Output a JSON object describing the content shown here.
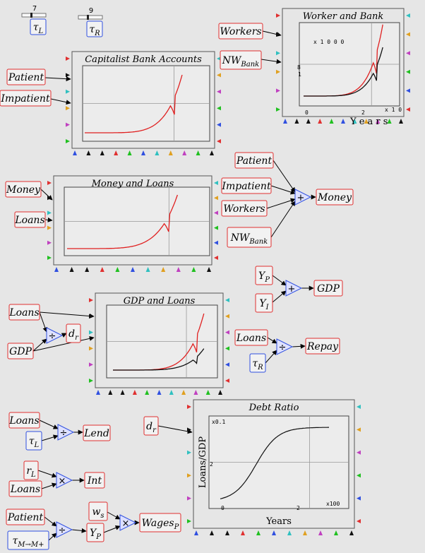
{
  "sliders": [
    {
      "value": "7",
      "label": "τ",
      "sub": "L"
    },
    {
      "value": "9",
      "label": "τ",
      "sub": "R"
    }
  ],
  "plots": {
    "worker_bank": {
      "title": "Worker and Bank",
      "scale_top": "x 1 0 0 0",
      "scale_left": "8",
      "scale_left2": "1",
      "xtick0": "0",
      "xtick2": "2",
      "xscale": "x 1 0",
      "xlabel": "Y e a r s",
      "inputs": [
        {
          "label": "Workers"
        },
        {
          "label": "NW",
          "sub": "Bank"
        }
      ]
    },
    "capitalist": {
      "title": "Capitalist Bank Accounts",
      "inputs": [
        {
          "label": "Patient"
        },
        {
          "label": "Impatient"
        }
      ]
    },
    "money_loans": {
      "title": "Money and Loans",
      "inputs": [
        {
          "label": "Money"
        },
        {
          "label": "Loans"
        }
      ]
    },
    "gdp_loans": {
      "title": "GDP and Loans"
    },
    "debt_ratio": {
      "title": "Debt Ratio",
      "ylabel": "Loans/GDP",
      "xlabel": "Years",
      "yscale": "x0.1",
      "y2": "2",
      "x0": "0",
      "x2": "2",
      "xscale": "x100",
      "input": {
        "label": "d",
        "sub": "r"
      }
    }
  },
  "blocks": {
    "money_sum": {
      "op": "+",
      "inputs": [
        {
          "label": "Patient"
        },
        {
          "label": "Impatient"
        },
        {
          "label": "Workers"
        },
        {
          "label": "NW",
          "sub": "Bank"
        }
      ],
      "output": "Money"
    },
    "gdp_sum": {
      "op": "+",
      "inputs": [
        {
          "label": "Y",
          "sub": "P"
        },
        {
          "label": "Y",
          "sub": "I"
        }
      ],
      "output": "GDP"
    },
    "dr_div": {
      "op": "÷",
      "inputs": [
        {
          "label": "Loans"
        },
        {
          "label": "GDP"
        }
      ],
      "output": {
        "label": "d",
        "sub": "r"
      }
    },
    "repay_div": {
      "op": "÷",
      "inputs": [
        {
          "label": "Loans"
        },
        {
          "label": "τ",
          "sub": "R"
        }
      ],
      "output": "Repay"
    },
    "lend_div": {
      "op": "÷",
      "inputs": [
        {
          "label": "Loans"
        },
        {
          "label": "τ",
          "sub": "L"
        }
      ],
      "output": "Lend"
    },
    "int_mul": {
      "op": "×",
      "inputs": [
        {
          "label": "r",
          "sub": "L"
        },
        {
          "label": "Loans"
        }
      ],
      "output": "Int"
    },
    "yp_div": {
      "op": "÷",
      "inputs": [
        {
          "label": "Patient"
        },
        {
          "label": "τ",
          "sub": "M→M+"
        }
      ],
      "output": {
        "label": "Y",
        "sub": "P"
      }
    },
    "wages_mul": {
      "op": "×",
      "inputs": [
        {
          "label": "w",
          "sub": "s"
        },
        {
          "label": "Y",
          "sub": "P"
        }
      ],
      "output": {
        "label": "Wages",
        "sub": "P"
      }
    }
  },
  "colors": {
    "red": "#e02020",
    "black": "#111111",
    "label_border": "#e03030",
    "param_border": "#3050e0",
    "block_border": "#3050e0",
    "block_fill": "#dde0ff"
  }
}
